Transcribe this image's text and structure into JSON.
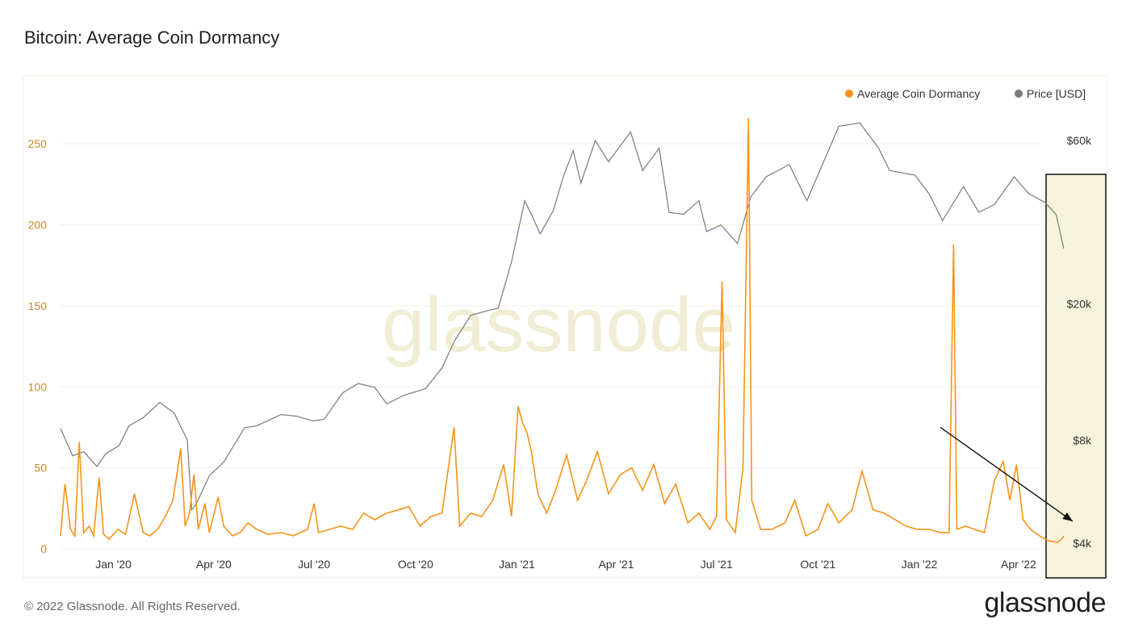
{
  "header": {
    "title": "Bitcoin: Average Coin Dormancy"
  },
  "footer": {
    "copyright": "© 2022 Glassnode. All Rights Reserved.",
    "brand": "glassnode"
  },
  "watermark": "glassnode",
  "colors": {
    "dormancy": "#f7931a",
    "price": "#7a7a7a",
    "highlight_fill": "#f6f3dc",
    "left_axis": "#c98a2a"
  },
  "chart_data": {
    "type": "line",
    "title": "Bitcoin: Average Coin Dormancy",
    "legend": {
      "placement": "top-right",
      "items": [
        {
          "name": "Average Coin Dormancy",
          "color": "#f7931a"
        },
        {
          "name": "Price [USD]",
          "color": "#7a7a7a"
        }
      ]
    },
    "x_range": [
      "2019-11-14",
      "2022-05-12"
    ],
    "x_ticks": [
      {
        "label": "Jan '20",
        "date": "2020-01-01"
      },
      {
        "label": "Apr '20",
        "date": "2020-04-01"
      },
      {
        "label": "Jul '20",
        "date": "2020-07-01"
      },
      {
        "label": "Oct '20",
        "date": "2020-10-01"
      },
      {
        "label": "Jan '21",
        "date": "2021-01-01"
      },
      {
        "label": "Apr '21",
        "date": "2021-04-01"
      },
      {
        "label": "Jul '21",
        "date": "2021-07-01"
      },
      {
        "label": "Oct '21",
        "date": "2021-10-01"
      },
      {
        "label": "Jan '22",
        "date": "2022-01-01"
      },
      {
        "label": "Apr '22",
        "date": "2022-04-01"
      }
    ],
    "left_axis": {
      "ylim": [
        0,
        275
      ],
      "ticks": [
        0,
        50,
        100,
        150,
        200,
        250
      ]
    },
    "right_axis": {
      "scale": "log",
      "ticks": [
        {
          "label": "$4k",
          "value": 4000
        },
        {
          "label": "$8k",
          "value": 8000
        },
        {
          "label": "$20k",
          "value": 20000
        },
        {
          "label": "$60k",
          "value": 60000
        }
      ]
    },
    "grid": "horizontal",
    "annotations": [
      {
        "type": "arrow",
        "description": "downward trend arrow",
        "from": {
          "x": "2022-01-20",
          "y": 75
        },
        "to": {
          "x": "2022-05-20",
          "y": 17
        }
      },
      {
        "type": "highlight_box",
        "x_from": "2022-04-10",
        "x_to": "2022-05-26"
      }
    ],
    "series": [
      {
        "name": "Average Coin Dormancy",
        "color": "#f7931a",
        "axis": "left",
        "points": [
          [
            "2019-11-14",
            8
          ],
          [
            "2019-11-18",
            40
          ],
          [
            "2019-11-23",
            12
          ],
          [
            "2019-11-27",
            8
          ],
          [
            "2019-12-01",
            66
          ],
          [
            "2019-12-05",
            10
          ],
          [
            "2019-12-10",
            14
          ],
          [
            "2019-12-14",
            8
          ],
          [
            "2019-12-19",
            44
          ],
          [
            "2019-12-23",
            9
          ],
          [
            "2019-12-28",
            6
          ],
          [
            "2020-01-05",
            12
          ],
          [
            "2020-01-12",
            9
          ],
          [
            "2020-01-20",
            34
          ],
          [
            "2020-01-28",
            10
          ],
          [
            "2020-02-03",
            8
          ],
          [
            "2020-02-10",
            12
          ],
          [
            "2020-02-17",
            20
          ],
          [
            "2020-02-24",
            30
          ],
          [
            "2020-03-02",
            62
          ],
          [
            "2020-03-06",
            14
          ],
          [
            "2020-03-10",
            22
          ],
          [
            "2020-03-14",
            46
          ],
          [
            "2020-03-18",
            12
          ],
          [
            "2020-03-24",
            28
          ],
          [
            "2020-03-28",
            10
          ],
          [
            "2020-04-05",
            32
          ],
          [
            "2020-04-10",
            14
          ],
          [
            "2020-04-18",
            8
          ],
          [
            "2020-04-25",
            10
          ],
          [
            "2020-05-02",
            16
          ],
          [
            "2020-05-10",
            12
          ],
          [
            "2020-05-20",
            9
          ],
          [
            "2020-06-01",
            10
          ],
          [
            "2020-06-12",
            8
          ],
          [
            "2020-06-25",
            12
          ],
          [
            "2020-07-01",
            28
          ],
          [
            "2020-07-05",
            10
          ],
          [
            "2020-07-15",
            12
          ],
          [
            "2020-07-25",
            14
          ],
          [
            "2020-08-05",
            12
          ],
          [
            "2020-08-15",
            22
          ],
          [
            "2020-08-25",
            18
          ],
          [
            "2020-09-05",
            22
          ],
          [
            "2020-09-15",
            24
          ],
          [
            "2020-09-25",
            26
          ],
          [
            "2020-10-05",
            14
          ],
          [
            "2020-10-15",
            20
          ],
          [
            "2020-10-25",
            22
          ],
          [
            "2020-11-05",
            75
          ],
          [
            "2020-11-10",
            14
          ],
          [
            "2020-11-20",
            22
          ],
          [
            "2020-11-30",
            20
          ],
          [
            "2020-12-10",
            30
          ],
          [
            "2020-12-20",
            52
          ],
          [
            "2020-12-27",
            20
          ],
          [
            "2021-01-02",
            88
          ],
          [
            "2021-01-06",
            78
          ],
          [
            "2021-01-10",
            72
          ],
          [
            "2021-01-14",
            60
          ],
          [
            "2021-01-20",
            34
          ],
          [
            "2021-01-28",
            22
          ],
          [
            "2021-02-05",
            36
          ],
          [
            "2021-02-15",
            58
          ],
          [
            "2021-02-25",
            30
          ],
          [
            "2021-03-05",
            42
          ],
          [
            "2021-03-15",
            60
          ],
          [
            "2021-03-25",
            34
          ],
          [
            "2021-04-05",
            46
          ],
          [
            "2021-04-15",
            50
          ],
          [
            "2021-04-25",
            36
          ],
          [
            "2021-05-05",
            52
          ],
          [
            "2021-05-15",
            28
          ],
          [
            "2021-05-25",
            40
          ],
          [
            "2021-06-05",
            16
          ],
          [
            "2021-06-15",
            22
          ],
          [
            "2021-06-25",
            12
          ],
          [
            "2021-07-01",
            20
          ],
          [
            "2021-07-06",
            165
          ],
          [
            "2021-07-10",
            18
          ],
          [
            "2021-07-18",
            10
          ],
          [
            "2021-07-25",
            50
          ],
          [
            "2021-07-30",
            266
          ],
          [
            "2021-08-02",
            30
          ],
          [
            "2021-08-10",
            12
          ],
          [
            "2021-08-20",
            12
          ],
          [
            "2021-09-01",
            16
          ],
          [
            "2021-09-10",
            30
          ],
          [
            "2021-09-20",
            8
          ],
          [
            "2021-10-01",
            12
          ],
          [
            "2021-10-10",
            28
          ],
          [
            "2021-10-20",
            16
          ],
          [
            "2021-11-01",
            24
          ],
          [
            "2021-11-10",
            48
          ],
          [
            "2021-11-20",
            24
          ],
          [
            "2021-11-30",
            22
          ],
          [
            "2021-12-10",
            18
          ],
          [
            "2021-12-20",
            14
          ],
          [
            "2021-12-30",
            12
          ],
          [
            "2022-01-10",
            12
          ],
          [
            "2022-01-20",
            10
          ],
          [
            "2022-01-28",
            10
          ],
          [
            "2022-02-01",
            188
          ],
          [
            "2022-02-04",
            12
          ],
          [
            "2022-02-12",
            14
          ],
          [
            "2022-02-20",
            12
          ],
          [
            "2022-03-01",
            10
          ],
          [
            "2022-03-10",
            42
          ],
          [
            "2022-03-18",
            54
          ],
          [
            "2022-03-24",
            30
          ],
          [
            "2022-03-30",
            52
          ],
          [
            "2022-04-05",
            18
          ],
          [
            "2022-04-12",
            12
          ],
          [
            "2022-04-20",
            8
          ],
          [
            "2022-04-28",
            5
          ],
          [
            "2022-05-06",
            4
          ],
          [
            "2022-05-10",
            6
          ],
          [
            "2022-05-12",
            8
          ]
        ]
      },
      {
        "name": "Price [USD]",
        "color": "#7a7a7a",
        "axis": "right",
        "points": [
          [
            "2019-11-14",
            8650
          ],
          [
            "2019-11-25",
            7200
          ],
          [
            "2019-12-05",
            7400
          ],
          [
            "2019-12-17",
            6700
          ],
          [
            "2019-12-25",
            7300
          ],
          [
            "2020-01-06",
            7700
          ],
          [
            "2020-01-15",
            8800
          ],
          [
            "2020-01-28",
            9300
          ],
          [
            "2020-02-12",
            10300
          ],
          [
            "2020-02-25",
            9600
          ],
          [
            "2020-03-08",
            8000
          ],
          [
            "2020-03-12",
            5000
          ],
          [
            "2020-03-16",
            5200
          ],
          [
            "2020-03-28",
            6300
          ],
          [
            "2020-04-10",
            6900
          ],
          [
            "2020-04-29",
            8700
          ],
          [
            "2020-05-10",
            8800
          ],
          [
            "2020-06-01",
            9500
          ],
          [
            "2020-06-15",
            9400
          ],
          [
            "2020-06-30",
            9100
          ],
          [
            "2020-07-10",
            9200
          ],
          [
            "2020-07-27",
            11000
          ],
          [
            "2020-08-10",
            11700
          ],
          [
            "2020-08-25",
            11400
          ],
          [
            "2020-09-05",
            10200
          ],
          [
            "2020-09-20",
            10800
          ],
          [
            "2020-10-10",
            11300
          ],
          [
            "2020-10-25",
            13000
          ],
          [
            "2020-11-05",
            15500
          ],
          [
            "2020-11-20",
            18500
          ],
          [
            "2020-12-05",
            19100
          ],
          [
            "2020-12-15",
            19400
          ],
          [
            "2020-12-27",
            26500
          ],
          [
            "2021-01-08",
            40000
          ],
          [
            "2021-01-15",
            36000
          ],
          [
            "2021-01-22",
            32000
          ],
          [
            "2021-02-03",
            37500
          ],
          [
            "2021-02-12",
            47000
          ],
          [
            "2021-02-21",
            56000
          ],
          [
            "2021-02-28",
            45000
          ],
          [
            "2021-03-13",
            60000
          ],
          [
            "2021-03-25",
            52000
          ],
          [
            "2021-04-14",
            63500
          ],
          [
            "2021-04-25",
            49000
          ],
          [
            "2021-05-10",
            57000
          ],
          [
            "2021-05-19",
            37000
          ],
          [
            "2021-06-01",
            36500
          ],
          [
            "2021-06-15",
            40000
          ],
          [
            "2021-06-22",
            32500
          ],
          [
            "2021-07-05",
            34000
          ],
          [
            "2021-07-20",
            30000
          ],
          [
            "2021-08-01",
            41000
          ],
          [
            "2021-08-15",
            47000
          ],
          [
            "2021-09-05",
            51000
          ],
          [
            "2021-09-21",
            40000
          ],
          [
            "2021-10-05",
            51000
          ],
          [
            "2021-10-20",
            66000
          ],
          [
            "2021-11-08",
            67500
          ],
          [
            "2021-11-25",
            57000
          ],
          [
            "2021-12-05",
            49000
          ],
          [
            "2021-12-28",
            47500
          ],
          [
            "2022-01-10",
            41800
          ],
          [
            "2022-01-22",
            35000
          ],
          [
            "2022-02-10",
            44000
          ],
          [
            "2022-02-24",
            37000
          ],
          [
            "2022-03-10",
            39000
          ],
          [
            "2022-03-28",
            47000
          ],
          [
            "2022-04-10",
            42000
          ],
          [
            "2022-04-25",
            39500
          ],
          [
            "2022-05-05",
            36500
          ],
          [
            "2022-05-12",
            29000
          ]
        ]
      }
    ]
  }
}
